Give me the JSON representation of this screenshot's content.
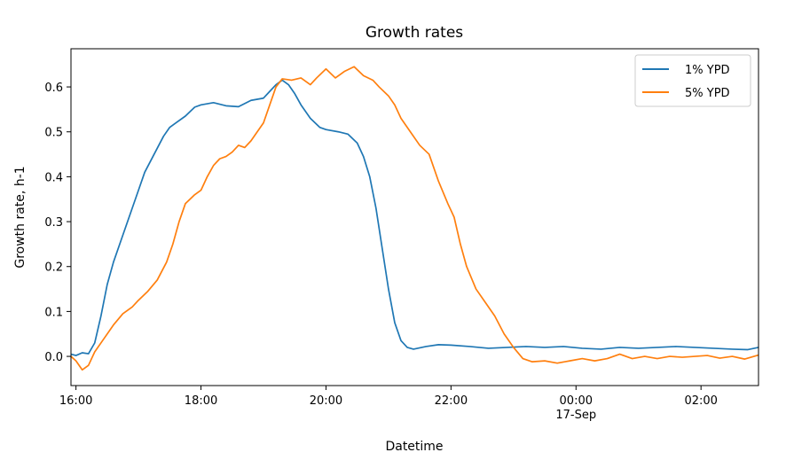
{
  "chart_data": {
    "type": "line",
    "title": "Growth rates",
    "xlabel": "Datetime",
    "ylabel": "Growth rate, h-1",
    "x_unit": "hours (clock time, 16-Sep 15:55 to 17-Sep 02:55)",
    "xlim": [
      15.92,
      26.92
    ],
    "ylim": [
      -0.065,
      0.685
    ],
    "x_ticks": [
      {
        "value": 16,
        "label": "16:00",
        "sublabel": ""
      },
      {
        "value": 18,
        "label": "18:00",
        "sublabel": ""
      },
      {
        "value": 20,
        "label": "20:00",
        "sublabel": ""
      },
      {
        "value": 22,
        "label": "22:00",
        "sublabel": ""
      },
      {
        "value": 24,
        "label": "00:00",
        "sublabel": "17-Sep"
      },
      {
        "value": 26,
        "label": "02:00",
        "sublabel": ""
      }
    ],
    "y_ticks": [
      {
        "value": 0.0,
        "label": "0.0"
      },
      {
        "value": 0.1,
        "label": "0.1"
      },
      {
        "value": 0.2,
        "label": "0.2"
      },
      {
        "value": 0.3,
        "label": "0.3"
      },
      {
        "value": 0.4,
        "label": "0.4"
      },
      {
        "value": 0.5,
        "label": "0.5"
      },
      {
        "value": 0.6,
        "label": "0.6"
      }
    ],
    "grid": false,
    "legend_position": "top-right",
    "series": [
      {
        "name": "1% YPD",
        "color": "#1f77b4",
        "points": [
          [
            15.92,
            0.005
          ],
          [
            16.0,
            0.002
          ],
          [
            16.1,
            0.008
          ],
          [
            16.2,
            0.006
          ],
          [
            16.3,
            0.03
          ],
          [
            16.4,
            0.09
          ],
          [
            16.5,
            0.16
          ],
          [
            16.6,
            0.21
          ],
          [
            16.75,
            0.27
          ],
          [
            16.9,
            0.33
          ],
          [
            17.0,
            0.37
          ],
          [
            17.1,
            0.41
          ],
          [
            17.25,
            0.45
          ],
          [
            17.4,
            0.49
          ],
          [
            17.5,
            0.51
          ],
          [
            17.6,
            0.52
          ],
          [
            17.75,
            0.535
          ],
          [
            17.9,
            0.555
          ],
          [
            18.0,
            0.56
          ],
          [
            18.2,
            0.565
          ],
          [
            18.4,
            0.558
          ],
          [
            18.6,
            0.556
          ],
          [
            18.8,
            0.57
          ],
          [
            19.0,
            0.575
          ],
          [
            19.1,
            0.59
          ],
          [
            19.2,
            0.605
          ],
          [
            19.3,
            0.615
          ],
          [
            19.4,
            0.605
          ],
          [
            19.5,
            0.585
          ],
          [
            19.6,
            0.56
          ],
          [
            19.75,
            0.53
          ],
          [
            19.9,
            0.51
          ],
          [
            20.0,
            0.505
          ],
          [
            20.2,
            0.5
          ],
          [
            20.35,
            0.495
          ],
          [
            20.5,
            0.475
          ],
          [
            20.6,
            0.445
          ],
          [
            20.7,
            0.4
          ],
          [
            20.8,
            0.33
          ],
          [
            20.9,
            0.24
          ],
          [
            21.0,
            0.15
          ],
          [
            21.1,
            0.075
          ],
          [
            21.2,
            0.035
          ],
          [
            21.3,
            0.02
          ],
          [
            21.4,
            0.016
          ],
          [
            21.6,
            0.022
          ],
          [
            21.8,
            0.026
          ],
          [
            22.0,
            0.025
          ],
          [
            22.3,
            0.022
          ],
          [
            22.6,
            0.018
          ],
          [
            22.9,
            0.02
          ],
          [
            23.2,
            0.022
          ],
          [
            23.5,
            0.02
          ],
          [
            23.8,
            0.022
          ],
          [
            24.1,
            0.018
          ],
          [
            24.4,
            0.016
          ],
          [
            24.7,
            0.02
          ],
          [
            25.0,
            0.018
          ],
          [
            25.3,
            0.02
          ],
          [
            25.6,
            0.022
          ],
          [
            25.9,
            0.02
          ],
          [
            26.2,
            0.018
          ],
          [
            26.5,
            0.016
          ],
          [
            26.75,
            0.015
          ],
          [
            26.92,
            0.02
          ]
        ]
      },
      {
        "name": "5% YPD",
        "color": "#ff7f0e",
        "points": [
          [
            15.92,
            0.0
          ],
          [
            16.0,
            -0.01
          ],
          [
            16.1,
            -0.03
          ],
          [
            16.2,
            -0.02
          ],
          [
            16.3,
            0.01
          ],
          [
            16.45,
            0.04
          ],
          [
            16.6,
            0.07
          ],
          [
            16.75,
            0.095
          ],
          [
            16.9,
            0.11
          ],
          [
            17.0,
            0.125
          ],
          [
            17.15,
            0.145
          ],
          [
            17.3,
            0.17
          ],
          [
            17.45,
            0.21
          ],
          [
            17.55,
            0.25
          ],
          [
            17.65,
            0.3
          ],
          [
            17.75,
            0.34
          ],
          [
            17.9,
            0.36
          ],
          [
            18.0,
            0.37
          ],
          [
            18.1,
            0.4
          ],
          [
            18.2,
            0.425
          ],
          [
            18.3,
            0.44
          ],
          [
            18.4,
            0.445
          ],
          [
            18.5,
            0.455
          ],
          [
            18.6,
            0.47
          ],
          [
            18.7,
            0.465
          ],
          [
            18.8,
            0.48
          ],
          [
            18.9,
            0.5
          ],
          [
            19.0,
            0.52
          ],
          [
            19.1,
            0.56
          ],
          [
            19.2,
            0.6
          ],
          [
            19.3,
            0.618
          ],
          [
            19.45,
            0.615
          ],
          [
            19.6,
            0.62
          ],
          [
            19.75,
            0.605
          ],
          [
            19.85,
            0.62
          ],
          [
            20.0,
            0.64
          ],
          [
            20.15,
            0.62
          ],
          [
            20.3,
            0.635
          ],
          [
            20.45,
            0.645
          ],
          [
            20.6,
            0.625
          ],
          [
            20.75,
            0.615
          ],
          [
            20.85,
            0.6
          ],
          [
            21.0,
            0.58
          ],
          [
            21.1,
            0.56
          ],
          [
            21.2,
            0.53
          ],
          [
            21.35,
            0.5
          ],
          [
            21.5,
            0.47
          ],
          [
            21.65,
            0.45
          ],
          [
            21.8,
            0.39
          ],
          [
            21.95,
            0.34
          ],
          [
            22.05,
            0.31
          ],
          [
            22.15,
            0.25
          ],
          [
            22.25,
            0.2
          ],
          [
            22.4,
            0.15
          ],
          [
            22.55,
            0.12
          ],
          [
            22.7,
            0.09
          ],
          [
            22.85,
            0.05
          ],
          [
            23.0,
            0.02
          ],
          [
            23.15,
            -0.005
          ],
          [
            23.3,
            -0.012
          ],
          [
            23.5,
            -0.01
          ],
          [
            23.7,
            -0.015
          ],
          [
            23.9,
            -0.01
          ],
          [
            24.1,
            -0.005
          ],
          [
            24.3,
            -0.01
          ],
          [
            24.5,
            -0.005
          ],
          [
            24.7,
            0.005
          ],
          [
            24.9,
            -0.005
          ],
          [
            25.1,
            0.0
          ],
          [
            25.3,
            -0.005
          ],
          [
            25.5,
            0.0
          ],
          [
            25.7,
            -0.002
          ],
          [
            25.9,
            0.0
          ],
          [
            26.1,
            0.002
          ],
          [
            26.3,
            -0.004
          ],
          [
            26.5,
            0.0
          ],
          [
            26.7,
            -0.006
          ],
          [
            26.92,
            0.003
          ]
        ]
      }
    ]
  }
}
